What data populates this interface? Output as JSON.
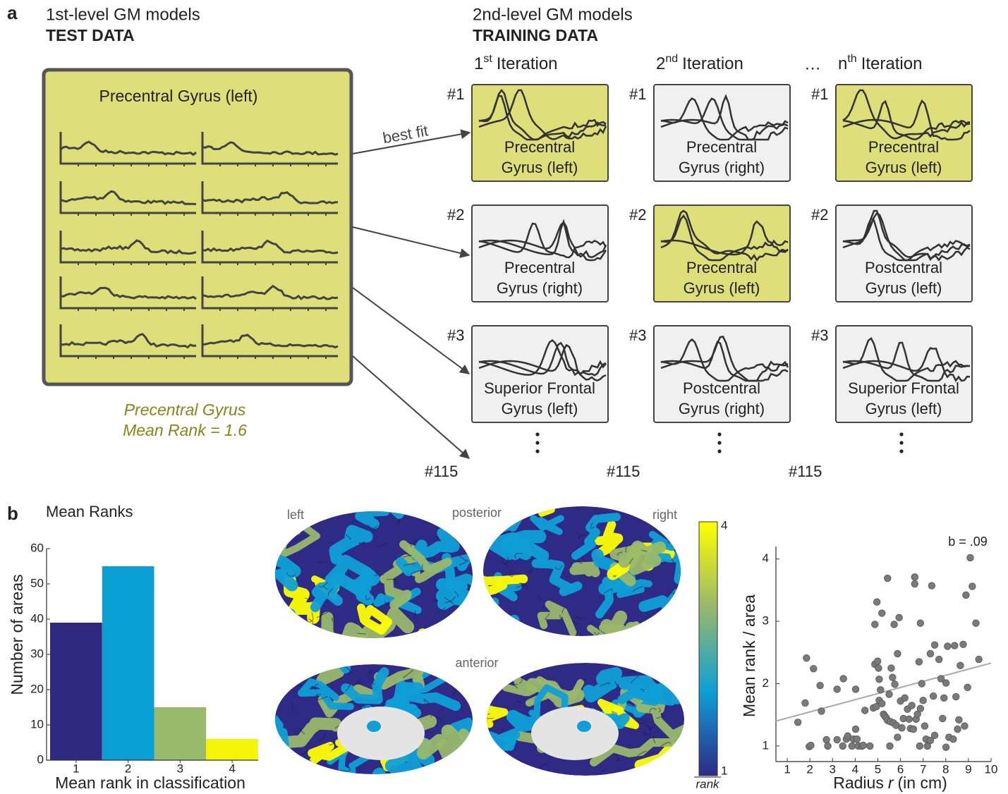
{
  "panel_a": {
    "label": "a",
    "test": {
      "level": "1st-level GM models",
      "data": "TEST DATA",
      "region": "Precentral Gyrus (left)",
      "summary": [
        "Precentral Gyrus",
        "Mean Rank = 1.6"
      ]
    },
    "training": {
      "level": "2nd-level GM models",
      "data": "TRAINING DATA"
    },
    "arrow_label": "best fit",
    "iterations": [
      {
        "num": "1",
        "sup": "st",
        "text": "Iteration",
        "ranks": [
          "#1",
          "#2",
          "#3"
        ],
        "last": "#115",
        "cells": [
          {
            "lines": [
              "Precentral",
              "Gyrus (left)"
            ],
            "best_fit": true
          },
          {
            "lines": [
              "Precentral",
              "Gyrus (right)"
            ],
            "best_fit": false
          },
          {
            "lines": [
              "Superior Frontal",
              "Gyrus (left)"
            ],
            "best_fit": false
          }
        ]
      },
      {
        "num": "2",
        "sup": "nd",
        "text": "Iteration",
        "ranks": [
          "#1",
          "#2",
          "#3"
        ],
        "last": "#115",
        "cells": [
          {
            "lines": [
              "Precentral",
              "Gyrus (right)"
            ],
            "best_fit": false
          },
          {
            "lines": [
              "Precentral",
              "Gyrus (left)"
            ],
            "best_fit": true
          },
          {
            "lines": [
              "Postcentral",
              "Gyrus (right)"
            ],
            "best_fit": false
          }
        ]
      },
      {
        "prefix": "…",
        "num": "n",
        "sup": "th",
        "text": "Iteration",
        "ranks": [
          "#1",
          "#2",
          "#3"
        ],
        "last": "#115",
        "cells": [
          {
            "lines": [
              "Precentral",
              "Gyrus (left)"
            ],
            "best_fit": true
          },
          {
            "lines": [
              "Postcentral",
              "Gyrus (left)"
            ],
            "best_fit": false
          },
          {
            "lines": [
              "Superior Frontal",
              "Gyrus (left)"
            ],
            "best_fit": false
          }
        ]
      }
    ]
  },
  "panel_b": {
    "label": "b",
    "views": [
      "left",
      "posterior",
      "right",
      "anterior"
    ],
    "colorbar": {
      "lim": [
        1,
        4
      ],
      "ticks": [
        1,
        4
      ],
      "label": "rank",
      "colors": [
        "#2e2a86",
        "#0f9fd6",
        "#99b86b",
        "#ffff00"
      ]
    }
  },
  "chart_data": [
    {
      "type": "bar",
      "title": "Mean Ranks",
      "xlabel": "Mean rank in classification",
      "ylabel": "Number of areas",
      "categories": [
        "1",
        "2",
        "3",
        "4"
      ],
      "values": [
        39,
        55,
        15,
        6
      ],
      "colors": [
        "#31287f",
        "#0aa0d6",
        "#9ab96b",
        "#f5f50a"
      ],
      "ylim": [
        0,
        60
      ],
      "yticks": [
        0,
        10,
        20,
        30,
        40,
        50,
        60
      ]
    },
    {
      "type": "scatter",
      "annotation": "b = .09",
      "ylabel": "Mean rank / area",
      "xlabel": {
        "text": "Radius",
        "var": "r",
        "unit": "(in cm)"
      },
      "color": "#7a7a7a",
      "xlim": [
        0.5,
        10
      ],
      "ylim": [
        0.75,
        4.2
      ],
      "xticks": [
        1,
        2,
        3,
        4,
        5,
        6,
        7,
        8,
        9,
        10
      ],
      "yticks": [
        1,
        2,
        3,
        4
      ],
      "fit": {
        "x": [
          0.5,
          10
        ],
        "y": [
          1.4,
          2.33
        ]
      },
      "x": [
        1.47,
        1.79,
        1.85,
        1.97,
        2.04,
        2.16,
        2.51,
        2.45,
        2.73,
        2.79,
        3.2,
        3.2,
        3.45,
        3.48,
        3.61,
        3.67,
        3.92,
        3.86,
        4.02,
        4.08,
        4.14,
        4.02,
        4.3,
        4.36,
        4.43,
        4.65,
        4.8,
        4.87,
        4.87,
        4.93,
        4.96,
        4.99,
        5.03,
        5.06,
        5.06,
        5.12,
        5.18,
        5.18,
        5.25,
        5.31,
        5.37,
        5.43,
        5.43,
        5.5,
        5.53,
        5.56,
        5.59,
        5.65,
        5.69,
        5.72,
        5.75,
        5.81,
        5.87,
        5.87,
        5.94,
        6.0,
        6.06,
        6.13,
        6.19,
        6.31,
        6.38,
        6.44,
        6.5,
        6.57,
        6.63,
        6.63,
        6.69,
        6.75,
        6.82,
        6.85,
        6.88,
        6.88,
        6.94,
        7.0,
        7.07,
        7.13,
        7.19,
        7.32,
        7.32,
        7.38,
        7.45,
        7.51,
        7.51,
        7.7,
        7.79,
        7.86,
        7.92,
        8.01,
        8.01,
        8.08,
        8.14,
        8.33,
        8.39,
        8.45,
        8.52,
        8.58,
        8.64,
        8.77,
        8.83,
        8.89,
        8.96,
        9.08,
        9.17,
        9.33,
        9.46
      ],
      "y": [
        1.38,
        1.69,
        2.41,
        0.99,
        1.01,
        2.24,
        1.56,
        1.97,
        1.1,
        1.0,
        1.91,
        1.1,
        1.0,
        2.08,
        1.11,
        1.16,
        1.11,
        1.0,
        1.91,
        1.11,
        1.0,
        1.27,
        1.0,
        1.01,
        1.57,
        1.0,
        1.61,
        2.95,
        2.31,
        1.63,
        3.31,
        2.36,
        2.25,
        2.07,
        1.73,
        1.9,
        3.13,
        1.68,
        1.51,
        1.48,
        1.45,
        3.69,
        1.41,
        1.83,
        1.0,
        1.39,
        2.25,
        2.1,
        1.37,
        2.95,
        1.99,
        1.33,
        2.48,
        1.14,
        3.06,
        1.72,
        1.29,
        1.44,
        1.77,
        1.59,
        1.43,
        1.28,
        1.65,
        1.27,
        3.71,
        3.6,
        1.43,
        1.51,
        2.35,
        1.0,
        1.6,
        2.97,
        2.0,
        1.73,
        1.32,
        1.11,
        1.0,
        2.48,
        1.09,
        3.57,
        1.8,
        2.62,
        1.17,
        2.39,
        2.08,
        1.44,
        1.77,
        2.01,
        0.98,
        2.6,
        1.14,
        1.11,
        2.61,
        1.79,
        1.27,
        1.42,
        2.29,
        2.63,
        1.32,
        3.42,
        1.94,
        4.02,
        3.56,
        2.97,
        2.39
      ]
    }
  ]
}
